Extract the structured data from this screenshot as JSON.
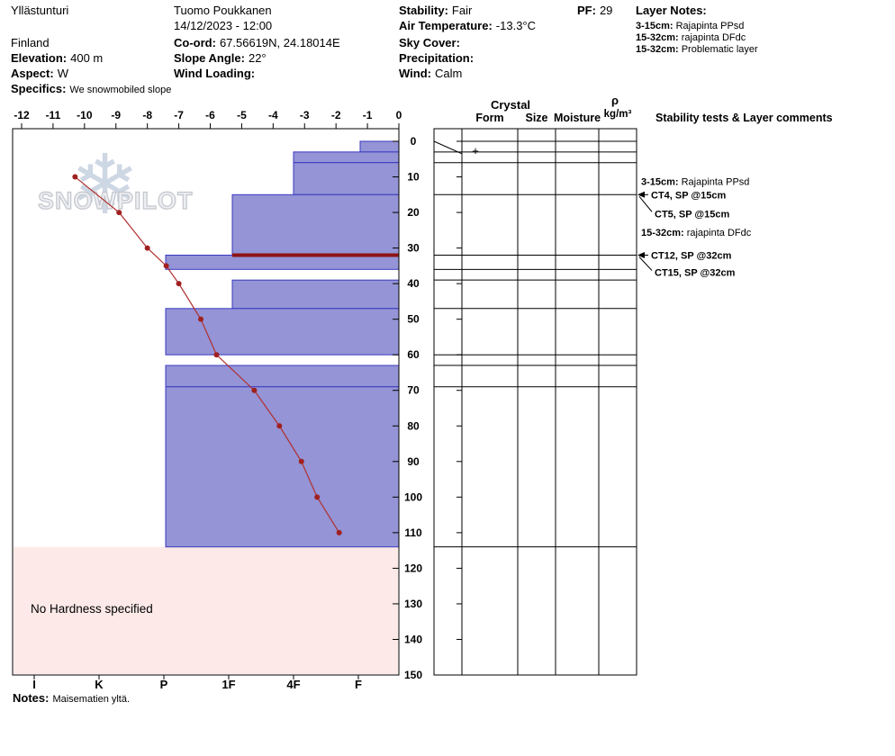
{
  "header": {
    "location": "Yllästunturi",
    "country": "Finland",
    "elevation_label": "Elevation:",
    "elevation_value": "400 m",
    "aspect_label": "Aspect:",
    "aspect_value": "W",
    "specifics_label": "Specifics:",
    "specifics_value": "We snowmobiled slope",
    "observer": "Tuomo Poukkanen",
    "datetime": "14/12/2023 - 12:00",
    "coord_label": "Co-ord:",
    "coord_value": "67.56619N, 24.18014E",
    "slope_angle_label": "Slope Angle:",
    "slope_angle_value": "22°",
    "wind_loading_label": "Wind Loading:",
    "wind_loading_value": "",
    "stability_label": "Stability:",
    "stability_value": "Fair",
    "air_temp_label": "Air Temperature:",
    "air_temp_value": "-13.3°C",
    "sky_label": "Sky Cover:",
    "sky_value": "",
    "precip_label": "Precipitation:",
    "precip_value": "",
    "wind_label": "Wind:",
    "wind_value": "Calm",
    "pf_label": "PF:",
    "pf_value": "29",
    "layer_notes_title": "Layer Notes:",
    "layer_notes": [
      {
        "range": "3-15cm:",
        "text": "Rajapinta PPsd"
      },
      {
        "range": "15-32cm:",
        "text": "rajapinta DFdc"
      },
      {
        "range": "15-32cm:",
        "text": "Problematic layer"
      }
    ]
  },
  "chart_data": {
    "type": "snow-profile",
    "depth_axis": {
      "min_cm": 0,
      "max_cm": 150,
      "tick_step_cm": 10,
      "unit": "cm"
    },
    "temperature_axis": {
      "min_c": -12,
      "max_c": 0,
      "tick_step_c": 1,
      "unit": "°C"
    },
    "hardness_axis": {
      "categories": [
        "I",
        "K",
        "P",
        "1F",
        "4F",
        "F"
      ]
    },
    "layers": [
      {
        "top_cm": 0,
        "bottom_cm": 3,
        "hardness": "F"
      },
      {
        "top_cm": 3,
        "bottom_cm": 6,
        "hardness": "4F"
      },
      {
        "top_cm": 6,
        "bottom_cm": 15,
        "hardness": "4F"
      },
      {
        "top_cm": 15,
        "bottom_cm": 32,
        "hardness": "1F",
        "problematic": true
      },
      {
        "top_cm": 32,
        "bottom_cm": 36,
        "hardness": "P"
      },
      {
        "top_cm": 36,
        "bottom_cm": 39,
        "hardness": null
      },
      {
        "top_cm": 39,
        "bottom_cm": 47,
        "hardness": "1F"
      },
      {
        "top_cm": 47,
        "bottom_cm": 60,
        "hardness": "P"
      },
      {
        "top_cm": 60,
        "bottom_cm": 63,
        "hardness": null
      },
      {
        "top_cm": 63,
        "bottom_cm": 69,
        "hardness": "P"
      },
      {
        "top_cm": 69,
        "bottom_cm": 114,
        "hardness": "P"
      }
    ],
    "no_hardness_region": {
      "top_cm": 114,
      "bottom_cm": 150,
      "label": "No Hardness specified"
    },
    "temperature_profile": [
      {
        "depth_cm": 10,
        "temp_c": -10.3
      },
      {
        "depth_cm": 20,
        "temp_c": -8.9
      },
      {
        "depth_cm": 30,
        "temp_c": -8.0
      },
      {
        "depth_cm": 35,
        "temp_c": -7.4
      },
      {
        "depth_cm": 40,
        "temp_c": -7.0
      },
      {
        "depth_cm": 50,
        "temp_c": -6.3
      },
      {
        "depth_cm": 60,
        "temp_c": -5.8
      },
      {
        "depth_cm": 70,
        "temp_c": -4.6
      },
      {
        "depth_cm": 80,
        "temp_c": -3.8
      },
      {
        "depth_cm": 90,
        "temp_c": -3.1
      },
      {
        "depth_cm": 100,
        "temp_c": -2.6
      },
      {
        "depth_cm": 110,
        "temp_c": -1.9
      }
    ]
  },
  "right_panel": {
    "crystal_header": "Crystal",
    "col_form": "Form",
    "col_size": "Size",
    "col_moisture": "Moisture",
    "rho_symbol": "ρ",
    "rho_units": "kg/m³",
    "comments_header": "Stability tests & Layer comments",
    "form_symbols": [
      {
        "depth_cm": 3,
        "symbol": "+"
      }
    ],
    "annotations": [
      {
        "type": "layer-note",
        "depth_cm": 11.2,
        "bold": "3-15cm:",
        "text": "Rajapinta PPsd"
      },
      {
        "type": "test-arrow",
        "depth_cm": 15,
        "text": "CT4, SP @15cm"
      },
      {
        "type": "test-offset",
        "depth_cm": 15,
        "label_depth_cm": 20.3,
        "text": "CT5, SP @15cm"
      },
      {
        "type": "layer-note",
        "depth_cm": 25.5,
        "bold": "15-32cm:",
        "text": "rajapinta DFdc"
      },
      {
        "type": "test-arrow",
        "depth_cm": 32,
        "text": "CT12, SP @32cm"
      },
      {
        "type": "test-offset",
        "depth_cm": 32,
        "label_depth_cm": 36.8,
        "text": "CT15, SP @32cm"
      }
    ]
  },
  "footer": {
    "notes_label": "Notes:",
    "notes_value": "Maisematien yltä."
  },
  "watermark": {
    "text": "SNOWPILOT",
    "snowflake": "❄"
  },
  "colors": {
    "bar_fill": "#9494d6",
    "bar_border": "#3a3ac0",
    "temp_line": "#b03030",
    "temp_dot": "#a02020",
    "problem_line": "#8e1414",
    "no_hardness_fill": "#fdeae8",
    "no_hardness_text": "#444444"
  }
}
